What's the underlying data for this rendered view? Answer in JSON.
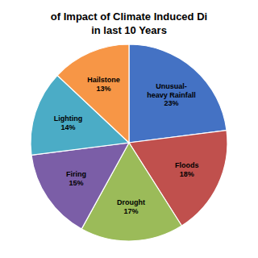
{
  "chart_data": {
    "type": "pie",
    "title": "of Impact of Climate Induced Di",
    "subtitle": "in last 10 Years",
    "categories": [
      "Unusual-\nheavy Rainfall",
      "Floods",
      "Drought",
      "Firing",
      "Lighting",
      "Hailstone"
    ],
    "values": [
      23,
      18,
      17,
      15,
      14,
      13
    ],
    "value_labels": [
      "23%",
      "18%",
      "17%",
      "15%",
      "14%",
      "13%"
    ],
    "colors": [
      "#4472C4",
      "#C0504D",
      "#9BBB59",
      "#7B5EA7",
      "#4BACC6",
      "#F79646"
    ],
    "data_labels": true
  }
}
